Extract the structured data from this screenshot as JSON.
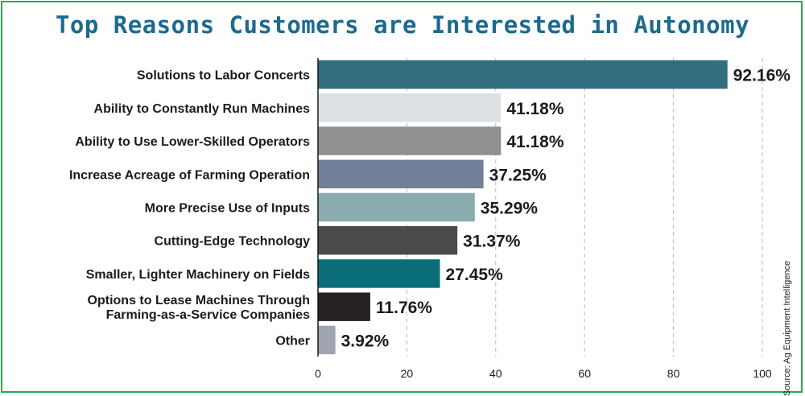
{
  "title": "Top Reasons Customers are Interested in Autonomy",
  "source": "Source: Ag Equipment Intelligence",
  "chart_data": {
    "type": "bar",
    "orientation": "horizontal",
    "categories": [
      [
        "Solutions to Labor Concerts"
      ],
      [
        "Ability to Constantly Run Machines"
      ],
      [
        "Ability to Use Lower-Skilled Operators"
      ],
      [
        "Increase Acreage of Farming Operation"
      ],
      [
        "More Precise Use of Inputs"
      ],
      [
        "Cutting-Edge Technology"
      ],
      [
        "Smaller, Lighter Machinery on Fields"
      ],
      [
        "Options to Lease Machines Through",
        "Farming-as-a-Service Companies"
      ],
      [
        "Other"
      ]
    ],
    "values": [
      92.16,
      41.18,
      41.18,
      37.25,
      35.29,
      31.37,
      27.45,
      11.76,
      3.92
    ],
    "value_labels": [
      "92.16%",
      "41.18%",
      "41.18%",
      "37.25%",
      "35.29%",
      "31.37%",
      "27.45%",
      "11.76%",
      "3.92%"
    ],
    "colors": [
      "#336d80",
      "#dbe1e2",
      "#8e9092",
      "#727f99",
      "#8aacb0",
      "#4a4a4a",
      "#096e78",
      "#252122",
      "#9ea4b0"
    ],
    "xlim": [
      0,
      100
    ],
    "xticks": [
      0,
      20,
      40,
      60,
      80,
      100
    ],
    "grid": "vertical dashed",
    "title": "Top Reasons Customers are Interested in Autonomy",
    "xlabel": "",
    "ylabel": ""
  }
}
